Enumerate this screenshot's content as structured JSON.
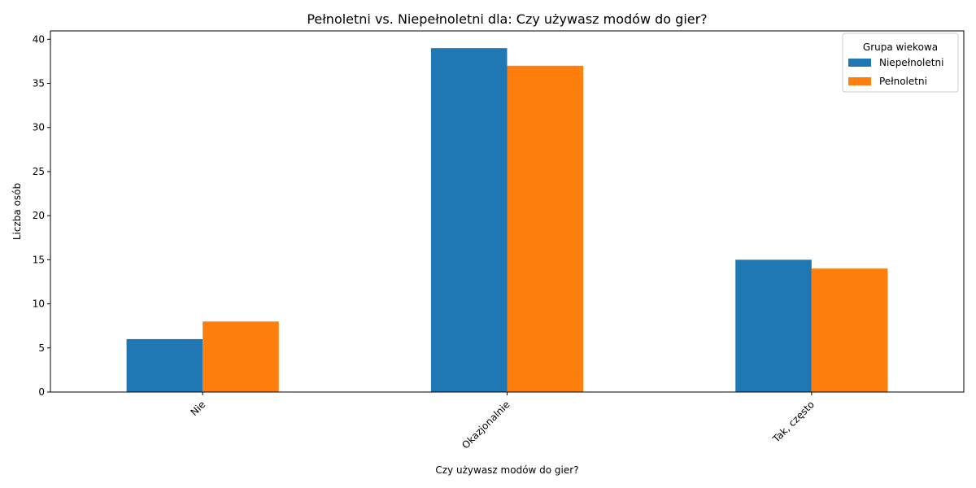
{
  "chart_data": {
    "type": "bar",
    "title": "Pełnoletni vs. Niepełnoletni dla: Czy używasz modów do gier?",
    "xlabel": "Czy używasz modów do gier?",
    "ylabel": "Liczba osób",
    "categories": [
      "Nie",
      "Okazjonalnie",
      "Tak, często"
    ],
    "series": [
      {
        "name": "Niepełnoletni",
        "values": [
          6,
          39,
          15
        ],
        "color": "#1f77b4"
      },
      {
        "name": "Pełnoletni",
        "values": [
          8,
          37,
          14
        ],
        "color": "#ff7f0e"
      }
    ],
    "ylim": [
      0,
      40.95
    ],
    "yticks": [
      0,
      5,
      10,
      15,
      20,
      25,
      30,
      35,
      40
    ],
    "grid": false,
    "legend": {
      "title": "Grupa wiekowa",
      "placement": "top-right"
    }
  }
}
